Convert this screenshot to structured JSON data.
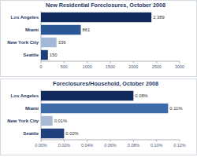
{
  "chart_data": [
    {
      "type": "bar",
      "orientation": "horizontal",
      "title": "New Residential Foreclosures, October 2008",
      "categories": [
        "Los Angeles",
        "Miami",
        "New York City",
        "Seattle"
      ],
      "values": [
        2389,
        861,
        336,
        150
      ],
      "value_labels": [
        "2,389",
        "861",
        "336",
        "150"
      ],
      "colors": [
        "#102a5c",
        "#2b5797",
        "#a3b8d8",
        "#1c3d7a"
      ],
      "xlim": [
        0,
        3000
      ],
      "xticks": [
        0,
        500,
        1000,
        1500,
        2000,
        2500,
        3000
      ],
      "grid": false,
      "data_labels": true
    },
    {
      "type": "bar",
      "orientation": "horizontal",
      "title": "Foreclosures/Household, October 2008",
      "categories": [
        "Los Angeles",
        "Miami",
        "New York City",
        "Seattle"
      ],
      "values": [
        0.08,
        0.11,
        0.01,
        0.02
      ],
      "value_labels": [
        "0.08%",
        "0.11%",
        "0.01%",
        "0.02%"
      ],
      "colors": [
        "#102a5c",
        "#3d6aa8",
        "#a8b9d6",
        "#1f3f7d"
      ],
      "xlim": [
        0,
        0.12
      ],
      "xticks": [
        {
          "value": 0,
          "label": "0.00%"
        },
        {
          "value": 0.02,
          "label": "0.02%"
        },
        {
          "value": 0.04,
          "label": "0.04%"
        },
        {
          "value": 0.06,
          "label": "0.06%"
        },
        {
          "value": 0.08,
          "label": "0.08%"
        },
        {
          "value": 0.1,
          "label": "0.10%"
        },
        {
          "value": 0.12,
          "label": "0.12%"
        }
      ],
      "grid": false,
      "data_labels": true
    }
  ]
}
